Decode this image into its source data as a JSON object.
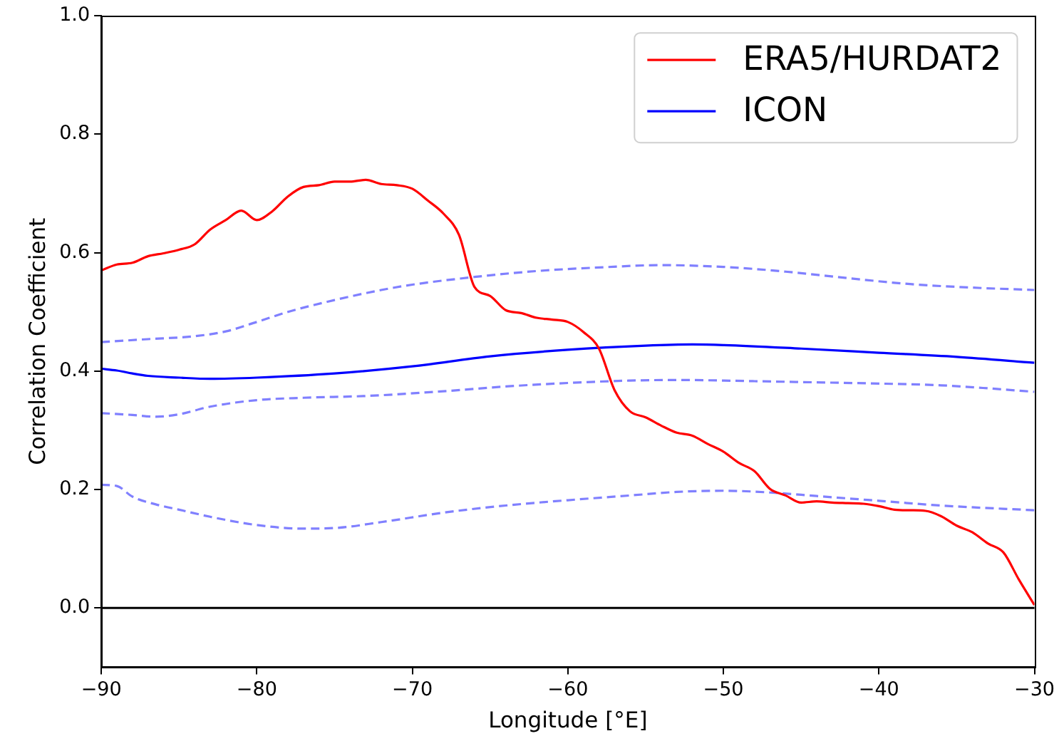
{
  "chart_data": {
    "type": "line",
    "xlabel": "Longitude [°E]",
    "ylabel": "Correlation Coefficient",
    "xlim": [
      -90,
      -30
    ],
    "xticks": [
      {
        "value": -90,
        "label": "−90"
      },
      {
        "value": -80,
        "label": "−80"
      },
      {
        "value": -70,
        "label": "−70"
      },
      {
        "value": -60,
        "label": "−60"
      },
      {
        "value": -50,
        "label": "−50"
      },
      {
        "value": -40,
        "label": "−40"
      },
      {
        "value": -30,
        "label": "−30"
      }
    ],
    "ylim": [
      -0.1,
      1.0
    ],
    "yticks": [
      {
        "value": 0,
        "label": "0.0"
      },
      {
        "value": 0.2,
        "label": "0.2"
      },
      {
        "value": 0.4,
        "label": "0.4"
      },
      {
        "value": 0.6,
        "label": "0.6"
      },
      {
        "value": 0.8,
        "label": "0.8"
      },
      {
        "value": 1.0,
        "label": "1.0"
      }
    ],
    "legend": "top right",
    "ref_lines": [
      {
        "axis": "y",
        "value": 0,
        "color": "#000000"
      }
    ],
    "series": [
      {
        "name": "ERA5/HURDAT2",
        "color": "#ff0000",
        "x": [
          -90,
          -89,
          -88,
          -87,
          -86,
          -85,
          -84,
          -83,
          -82,
          -81,
          -80,
          -79,
          -78,
          -77,
          -76,
          -75,
          -74,
          -73,
          -72,
          -71,
          -70,
          -69,
          -68,
          -67,
          -66,
          -65,
          -64,
          -63,
          -62,
          -61,
          -60,
          -59,
          -58,
          -57,
          -56,
          -55,
          -54,
          -53,
          -52,
          -51,
          -50,
          -49,
          -48,
          -47,
          -46,
          -45,
          -44,
          -43,
          -42,
          -41,
          -40,
          -39,
          -38,
          -37,
          -36,
          -35,
          -34,
          -33,
          -32,
          -31,
          -30
        ],
        "values": [
          0.57,
          0.58,
          0.583,
          0.594,
          0.599,
          0.605,
          0.614,
          0.639,
          0.655,
          0.671,
          0.655,
          0.67,
          0.695,
          0.711,
          0.714,
          0.72,
          0.72,
          0.723,
          0.716,
          0.714,
          0.708,
          0.688,
          0.666,
          0.63,
          0.542,
          0.527,
          0.503,
          0.498,
          0.49,
          0.487,
          0.483,
          0.466,
          0.438,
          0.368,
          0.332,
          0.322,
          0.308,
          0.296,
          0.291,
          0.277,
          0.264,
          0.245,
          0.231,
          0.201,
          0.19,
          0.178,
          0.18,
          0.178,
          0.177,
          0.176,
          0.172,
          0.166,
          0.165,
          0.164,
          0.155,
          0.139,
          0.128,
          0.109,
          0.094,
          0.048,
          0.005
        ]
      },
      {
        "name": "ICON",
        "color": "#0000ff",
        "x": [
          -90,
          -89,
          -88,
          -87,
          -85,
          -83,
          -80,
          -75,
          -70,
          -65,
          -60,
          -55,
          -52,
          -50,
          -45,
          -40,
          -35,
          -30
        ],
        "values": [
          0.404,
          0.401,
          0.396,
          0.392,
          0.389,
          0.387,
          0.389,
          0.396,
          0.408,
          0.425,
          0.436,
          0.443,
          0.445,
          0.444,
          0.438,
          0.431,
          0.424,
          0.414
        ]
      },
      {
        "color": "#8080ff",
        "line_style": "dashed",
        "x": [
          -90,
          -87,
          -84,
          -82,
          -80,
          -78,
          -75,
          -72,
          -70,
          -66,
          -62,
          -58,
          -54,
          -50,
          -46,
          -42,
          -38,
          -34,
          -30
        ],
        "values": [
          0.449,
          0.454,
          0.459,
          0.467,
          0.483,
          0.5,
          0.52,
          0.537,
          0.546,
          0.559,
          0.569,
          0.575,
          0.579,
          0.576,
          0.568,
          0.557,
          0.547,
          0.541,
          0.537
        ]
      },
      {
        "color": "#8080ff",
        "line_style": "dashed",
        "x": [
          -90,
          -88,
          -86.5,
          -85,
          -83,
          -80,
          -77,
          -73,
          -68,
          -64,
          -60,
          -56,
          -53,
          -48,
          -44,
          -40,
          -36,
          -33,
          -30
        ],
        "values": [
          0.329,
          0.326,
          0.323,
          0.327,
          0.34,
          0.351,
          0.355,
          0.358,
          0.366,
          0.374,
          0.38,
          0.384,
          0.385,
          0.383,
          0.381,
          0.379,
          0.376,
          0.371,
          0.365
        ]
      },
      {
        "color": "#8080ff",
        "line_style": "dashed",
        "x": [
          -90,
          -89,
          -88,
          -86.5,
          -85,
          -83,
          -80,
          -77,
          -75,
          -72,
          -68,
          -64,
          -60,
          -56,
          -53,
          -50,
          -47,
          -44,
          -40,
          -36,
          -30
        ],
        "values": [
          0.208,
          0.206,
          0.188,
          0.175,
          0.166,
          0.154,
          0.14,
          0.134,
          0.135,
          0.145,
          0.161,
          0.173,
          0.182,
          0.19,
          0.196,
          0.198,
          0.195,
          0.189,
          0.181,
          0.173,
          0.165
        ]
      }
    ]
  }
}
